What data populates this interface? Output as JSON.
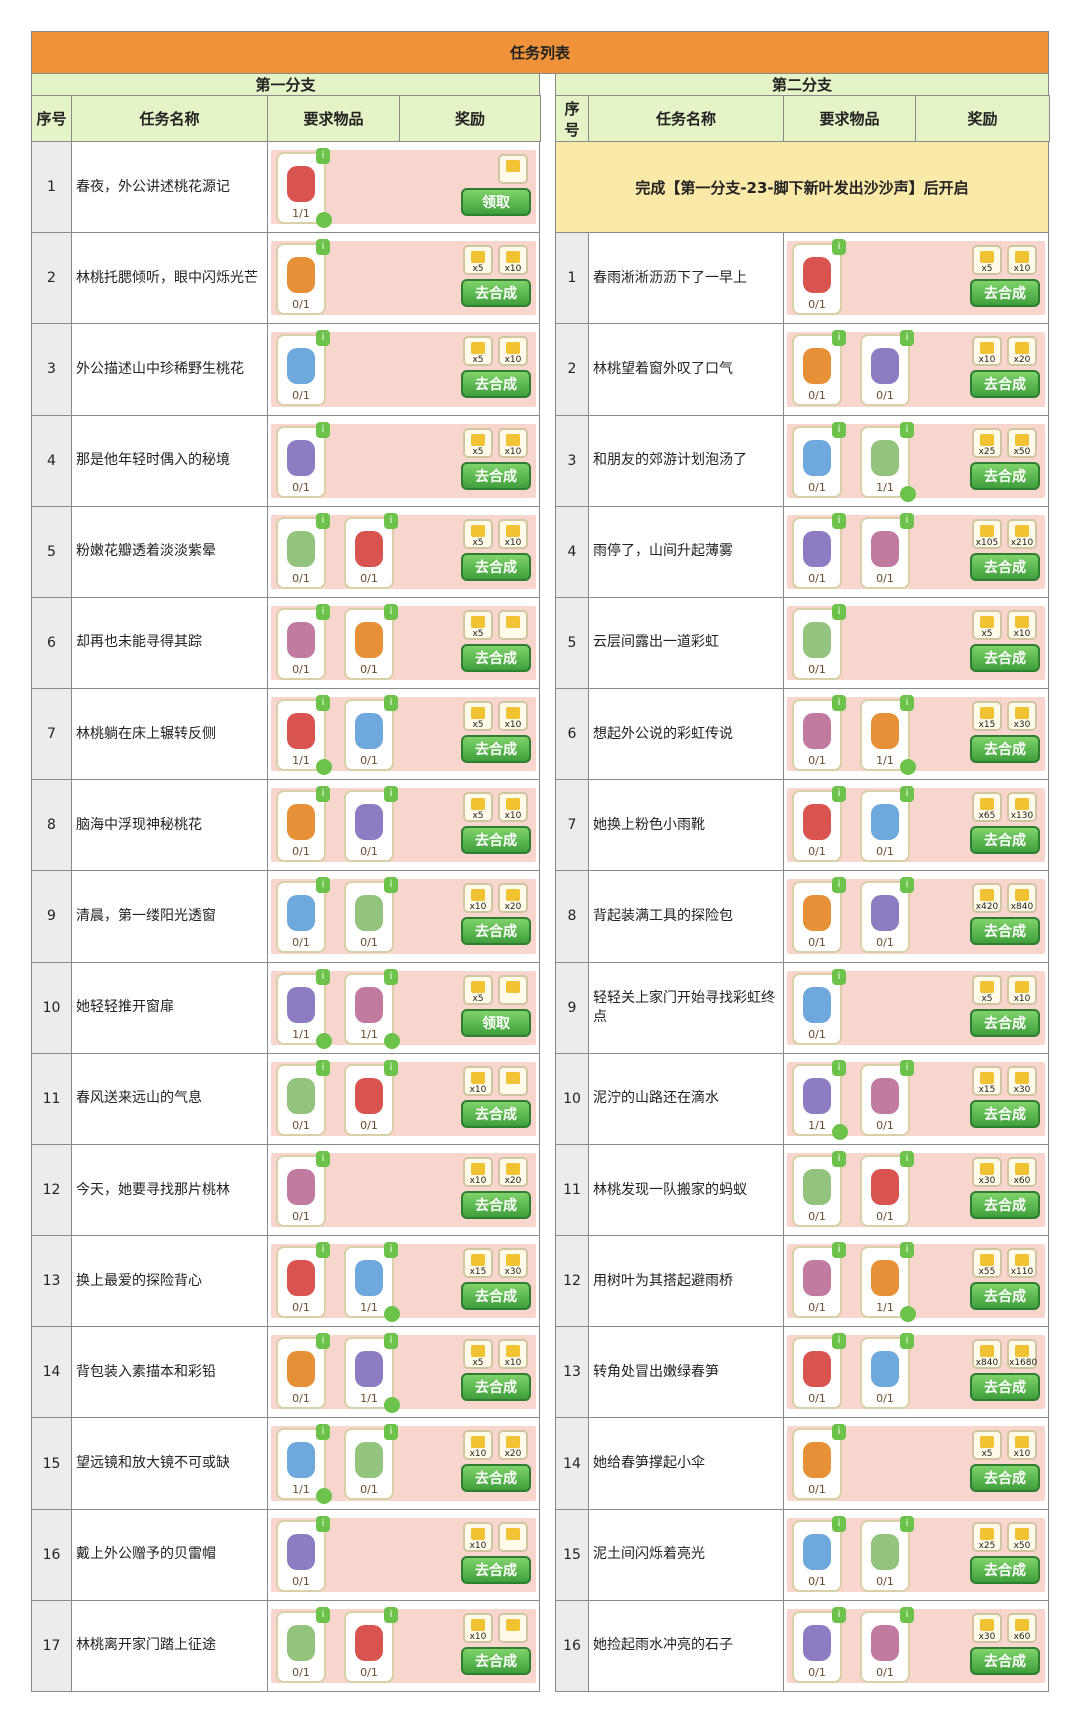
{
  "title": "任务列表",
  "branch1": {
    "title": "第一分支",
    "headers": [
      "序号",
      "任务名称",
      "要求物品",
      "奖励"
    ],
    "rows": [
      {
        "num": "1",
        "name": "春夜，外公讲述桃花源记",
        "items": [
          "1/1"
        ],
        "rewards": [],
        "reward_slots": 1,
        "button": "领取"
      },
      {
        "num": "2",
        "name": "林桃托腮倾听，眼中闪烁光芒",
        "items": [
          "0/1"
        ],
        "rewards": [
          "x5",
          "x10"
        ],
        "reward_slots": 2,
        "button": "去合成"
      },
      {
        "num": "3",
        "name": "外公描述山中珍稀野生桃花",
        "items": [
          "0/1"
        ],
        "rewards": [
          "x5",
          "x10"
        ],
        "reward_slots": 2,
        "button": "去合成"
      },
      {
        "num": "4",
        "name": "那是他年轻时偶入的秘境",
        "items": [
          "0/1"
        ],
        "rewards": [
          "x5",
          "x10"
        ],
        "reward_slots": 2,
        "button": "去合成"
      },
      {
        "num": "5",
        "name": "粉嫩花瓣透着淡淡紫晕",
        "items": [
          "0/1",
          "0/1"
        ],
        "rewards": [
          "x5",
          "x10"
        ],
        "reward_slots": 2,
        "button": "去合成"
      },
      {
        "num": "6",
        "name": "却再也未能寻得其踪",
        "items": [
          "0/1",
          "0/1"
        ],
        "rewards": [
          "x5"
        ],
        "reward_slots": 2,
        "button": "去合成"
      },
      {
        "num": "7",
        "name": "林桃躺在床上辗转反侧",
        "items": [
          "1/1",
          "0/1"
        ],
        "rewards": [
          "x5",
          "x10"
        ],
        "reward_slots": 2,
        "button": "去合成"
      },
      {
        "num": "8",
        "name": "脑海中浮现神秘桃花",
        "items": [
          "0/1",
          "0/1"
        ],
        "rewards": [
          "x5",
          "x10"
        ],
        "reward_slots": 2,
        "button": "去合成"
      },
      {
        "num": "9",
        "name": "清晨，第一缕阳光透窗",
        "items": [
          "0/1",
          "0/1"
        ],
        "rewards": [
          "x10",
          "x20"
        ],
        "reward_slots": 2,
        "button": "去合成"
      },
      {
        "num": "10",
        "name": "她轻轻推开窗扉",
        "items": [
          "1/1",
          "1/1"
        ],
        "rewards": [
          "x5"
        ],
        "reward_slots": 2,
        "button": "领取"
      },
      {
        "num": "11",
        "name": "春风送来远山的气息",
        "items": [
          "0/1",
          "0/1"
        ],
        "rewards": [
          "x10"
        ],
        "reward_slots": 2,
        "button": "去合成"
      },
      {
        "num": "12",
        "name": "今天，她要寻找那片桃林",
        "items": [
          "0/1"
        ],
        "rewards": [
          "x10",
          "x20"
        ],
        "reward_slots": 2,
        "button": "去合成"
      },
      {
        "num": "13",
        "name": "换上最爱的探险背心",
        "items": [
          "0/1",
          "1/1"
        ],
        "rewards": [
          "x15",
          "x30"
        ],
        "reward_slots": 2,
        "button": "去合成"
      },
      {
        "num": "14",
        "name": "背包装入素描本和彩铅",
        "items": [
          "0/1",
          "1/1"
        ],
        "rewards": [
          "x5",
          "x10"
        ],
        "reward_slots": 2,
        "button": "去合成"
      },
      {
        "num": "15",
        "name": "望远镜和放大镜不可或缺",
        "items": [
          "1/1",
          "0/1"
        ],
        "rewards": [
          "x10",
          "x20"
        ],
        "reward_slots": 2,
        "button": "去合成"
      },
      {
        "num": "16",
        "name": "戴上外公赠予的贝雷帽",
        "items": [
          "0/1"
        ],
        "rewards": [
          "x10"
        ],
        "reward_slots": 2,
        "button": "去合成"
      },
      {
        "num": "17",
        "name": "林桃离开家门踏上征途",
        "items": [
          "0/1",
          "0/1"
        ],
        "rewards": [
          "x10"
        ],
        "reward_slots": 2,
        "button": "去合成"
      }
    ]
  },
  "branch2": {
    "title": "第二分支",
    "headers": [
      "序号",
      "任务名称",
      "要求物品",
      "奖励"
    ],
    "note": "完成【第一分支-23-脚下新叶发出沙沙声】后开启",
    "rows": [
      {
        "num": "1",
        "name": "春雨淅淅沥沥下了一早上",
        "items": [
          "0/1"
        ],
        "rewards": [
          "x5",
          "x10"
        ],
        "reward_slots": 2,
        "button": "去合成"
      },
      {
        "num": "2",
        "name": "林桃望着窗外叹了口气",
        "items": [
          "0/1",
          "0/1"
        ],
        "rewards": [
          "x10",
          "x20"
        ],
        "reward_slots": 2,
        "button": "去合成"
      },
      {
        "num": "3",
        "name": "和朋友的郊游计划泡汤了",
        "items": [
          "0/1",
          "1/1"
        ],
        "rewards": [
          "x25",
          "x50"
        ],
        "reward_slots": 2,
        "button": "去合成"
      },
      {
        "num": "4",
        "name": "雨停了，山间升起薄雾",
        "items": [
          "0/1",
          "0/1"
        ],
        "rewards": [
          "x105",
          "x210"
        ],
        "reward_slots": 2,
        "button": "去合成"
      },
      {
        "num": "5",
        "name": "云层间露出一道彩虹",
        "items": [
          "0/1"
        ],
        "rewards": [
          "x5",
          "x10"
        ],
        "reward_slots": 2,
        "button": "去合成"
      },
      {
        "num": "6",
        "name": "想起外公说的彩虹传说",
        "items": [
          "0/1",
          "1/1"
        ],
        "rewards": [
          "x15",
          "x30"
        ],
        "reward_slots": 2,
        "button": "去合成"
      },
      {
        "num": "7",
        "name": "她换上粉色小雨靴",
        "items": [
          "0/1",
          "0/1"
        ],
        "rewards": [
          "x65",
          "x130"
        ],
        "reward_slots": 2,
        "button": "去合成"
      },
      {
        "num": "8",
        "name": "背起装满工具的探险包",
        "items": [
          "0/1",
          "0/1"
        ],
        "rewards": [
          "x420",
          "x840"
        ],
        "reward_slots": 2,
        "button": "去合成"
      },
      {
        "num": "9",
        "name": "轻轻关上家门开始寻找彩虹终点",
        "items": [
          "0/1"
        ],
        "rewards": [
          "x5",
          "x10"
        ],
        "reward_slots": 2,
        "button": "去合成"
      },
      {
        "num": "10",
        "name": "泥泞的山路还在滴水",
        "items": [
          "1/1",
          "0/1"
        ],
        "rewards": [
          "x15",
          "x30"
        ],
        "reward_slots": 2,
        "button": "去合成"
      },
      {
        "num": "11",
        "name": "林桃发现一队搬家的蚂蚁",
        "items": [
          "0/1",
          "0/1"
        ],
        "rewards": [
          "x30",
          "x60"
        ],
        "reward_slots": 2,
        "button": "去合成"
      },
      {
        "num": "12",
        "name": "用树叶为其搭起避雨桥",
        "items": [
          "0/1",
          "1/1"
        ],
        "rewards": [
          "x55",
          "x110"
        ],
        "reward_slots": 2,
        "button": "去合成"
      },
      {
        "num": "13",
        "name": "转角处冒出嫩绿春笋",
        "items": [
          "0/1",
          "0/1"
        ],
        "rewards": [
          "x840",
          "x1680"
        ],
        "reward_slots": 2,
        "button": "去合成"
      },
      {
        "num": "14",
        "name": "她给春笋撑起小伞",
        "items": [
          "0/1"
        ],
        "rewards": [
          "x5",
          "x10"
        ],
        "reward_slots": 2,
        "button": "去合成"
      },
      {
        "num": "15",
        "name": "泥土间闪烁着亮光",
        "items": [
          "0/1",
          "0/1"
        ],
        "rewards": [
          "x25",
          "x50"
        ],
        "reward_slots": 2,
        "button": "去合成"
      },
      {
        "num": "16",
        "name": "她捡起雨水冲亮的石子",
        "items": [
          "0/1",
          "0/1"
        ],
        "rewards": [
          "x30",
          "x60"
        ],
        "reward_slots": 2,
        "button": "去合成"
      }
    ]
  }
}
